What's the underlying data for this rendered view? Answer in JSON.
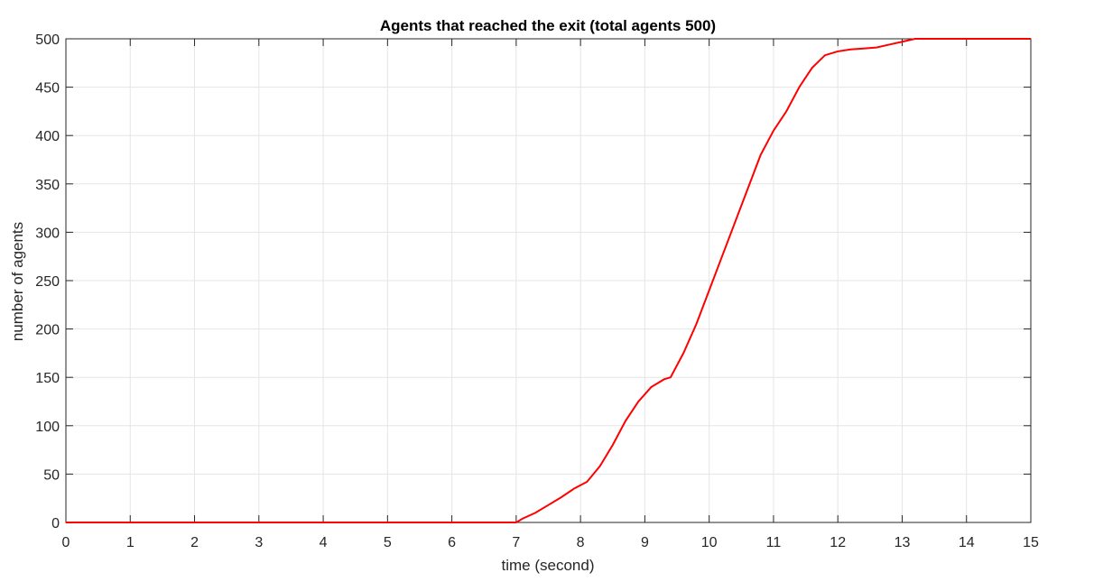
{
  "chart_data": {
    "type": "line",
    "title": "Agents that reached the exit (total agents 500)",
    "xlabel": "time (second)",
    "ylabel": "number of agents",
    "xlim": [
      0,
      15
    ],
    "ylim": [
      0,
      500
    ],
    "xticks": [
      "0",
      "1",
      "2",
      "3",
      "4",
      "5",
      "6",
      "7",
      "8",
      "9",
      "10",
      "11",
      "12",
      "13",
      "14",
      "15"
    ],
    "yticks": [
      "0",
      "50",
      "100",
      "150",
      "200",
      "250",
      "300",
      "350",
      "400",
      "450",
      "500"
    ],
    "grid": true,
    "line_color": "#ff0000",
    "series": [
      {
        "x": [
          0,
          7.0,
          7.1,
          7.3,
          7.5,
          7.7,
          7.9,
          8.1,
          8.3,
          8.5,
          8.7,
          8.9,
          9.1,
          9.3,
          9.4,
          9.6,
          9.8,
          10.0,
          10.2,
          10.4,
          10.6,
          10.8,
          11.0,
          11.2,
          11.4,
          11.6,
          11.8,
          12.0,
          12.2,
          12.4,
          12.6,
          12.8,
          13.0,
          13.2,
          15.0
        ],
        "y": [
          0,
          0,
          4,
          10,
          18,
          26,
          35,
          42,
          58,
          80,
          105,
          125,
          140,
          148,
          150,
          175,
          205,
          240,
          275,
          310,
          345,
          380,
          405,
          425,
          450,
          470,
          483,
          487,
          489,
          490,
          491,
          494,
          497,
          500,
          500
        ]
      }
    ]
  }
}
